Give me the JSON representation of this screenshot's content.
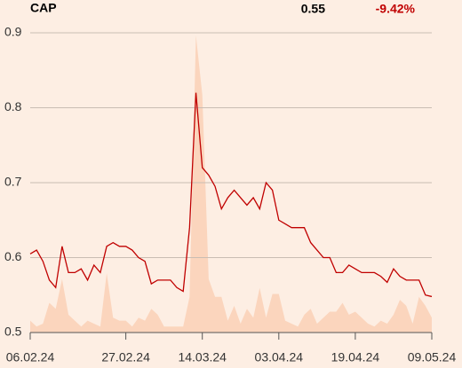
{
  "chart_data": {
    "type": "line",
    "title": "CAP",
    "last_price": "0.55",
    "change": "-9.42%",
    "categories": [
      "06.02.24",
      null,
      null,
      null,
      null,
      null,
      null,
      null,
      null,
      null,
      null,
      null,
      null,
      null,
      null,
      "27.02.24",
      null,
      null,
      null,
      null,
      null,
      null,
      null,
      null,
      null,
      null,
      null,
      "14.03.24",
      null,
      null,
      null,
      null,
      null,
      null,
      null,
      null,
      null,
      null,
      null,
      "03.04.24",
      null,
      null,
      null,
      null,
      null,
      null,
      null,
      null,
      null,
      null,
      null,
      "19.04.24",
      null,
      null,
      null,
      null,
      null,
      null,
      null,
      null,
      null,
      null,
      null,
      "09.05.24"
    ],
    "series": [
      {
        "color": "#c00000",
        "values": [
          0.605,
          0.61,
          0.595,
          0.57,
          0.56,
          0.615,
          0.58,
          0.58,
          0.585,
          0.57,
          0.59,
          0.58,
          0.615,
          0.62,
          0.615,
          0.615,
          0.61,
          0.6,
          0.595,
          0.565,
          0.57,
          0.57,
          0.57,
          0.56,
          0.555,
          0.64,
          0.82,
          0.72,
          0.71,
          0.695,
          0.665,
          0.68,
          0.69,
          0.68,
          0.67,
          0.68,
          0.665,
          0.7,
          0.69,
          0.65,
          0.645,
          0.64,
          0.64,
          0.64,
          0.62,
          0.61,
          0.6,
          0.6,
          0.58,
          0.58,
          0.59,
          0.585,
          0.58,
          0.58,
          0.58,
          0.575,
          0.567,
          0.585,
          0.575,
          0.57,
          0.57,
          0.57,
          0.55,
          0.548
        ]
      },
      {
        "color": "#fbd5bd",
        "axis": "y2",
        "values": [
          4,
          2,
          3,
          10,
          8,
          18,
          6,
          4,
          2,
          4,
          3,
          2,
          20,
          5,
          4,
          4,
          2,
          5,
          4,
          8,
          6,
          2,
          2,
          2,
          2,
          12,
          100,
          80,
          18,
          12,
          12,
          4,
          9,
          3,
          8,
          5,
          15,
          5,
          13,
          13,
          4,
          3,
          2,
          6,
          8,
          3,
          5,
          7,
          7,
          10,
          6,
          7,
          5,
          3,
          2,
          4,
          3,
          6,
          11,
          9,
          3,
          12,
          9,
          5
        ]
      }
    ],
    "ylim": [
      0.5,
      0.9
    ],
    "yticks": [
      0.9,
      0.8,
      0.7,
      0.6,
      0.5
    ],
    "y2lim": [
      0,
      100
    ],
    "grid": true
  }
}
